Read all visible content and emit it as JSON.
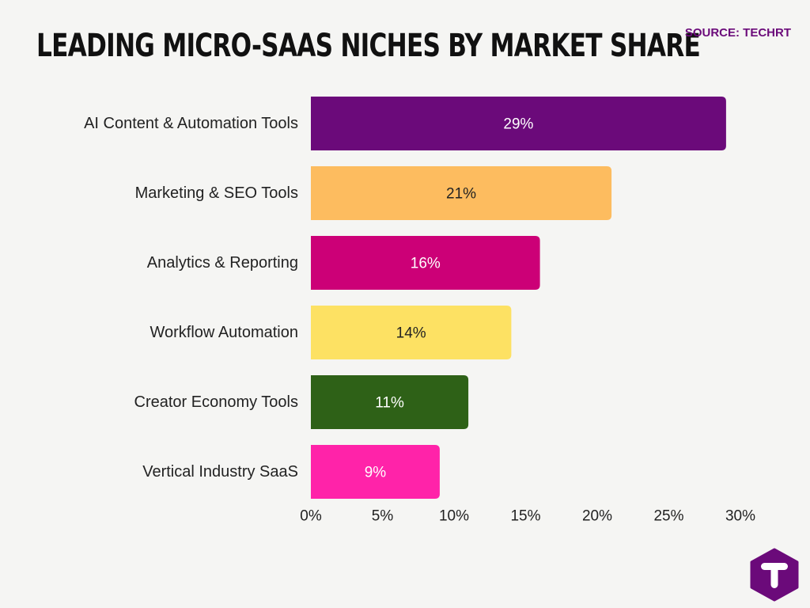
{
  "header": {
    "title": "LEADING MICRO-SAAS NICHES BY MARKET SHARE",
    "source": "SOURCE: TECHRT"
  },
  "logo": {
    "icon": "techrt-logo-icon",
    "color": "#6b0a7a"
  },
  "chart_data": {
    "type": "bar",
    "orientation": "horizontal",
    "categories": [
      "AI Content & Automation Tools",
      "Marketing & SEO Tools",
      "Analytics & Reporting",
      "Workflow Automation",
      "Creator Economy Tools",
      "Vertical Industry SaaS"
    ],
    "values": [
      29,
      21,
      16,
      14,
      11,
      9
    ],
    "value_labels": [
      "29%",
      "21%",
      "16%",
      "14%",
      "11%",
      "9%"
    ],
    "colors": [
      "#6b0a7a",
      "#fdbc5f",
      "#cc0077",
      "#fde163",
      "#2e6117",
      "#ff23a9"
    ],
    "label_colors": [
      "#ffffff",
      "#222222",
      "#ffffff",
      "#222222",
      "#ffffff",
      "#ffffff"
    ],
    "xlim": [
      0,
      30
    ],
    "xticks": [
      0,
      5,
      10,
      15,
      20,
      25,
      30
    ],
    "xtick_labels": [
      "0%",
      "5%",
      "10%",
      "15%",
      "20%",
      "25%",
      "30%"
    ],
    "grid": false,
    "legend": "none"
  }
}
